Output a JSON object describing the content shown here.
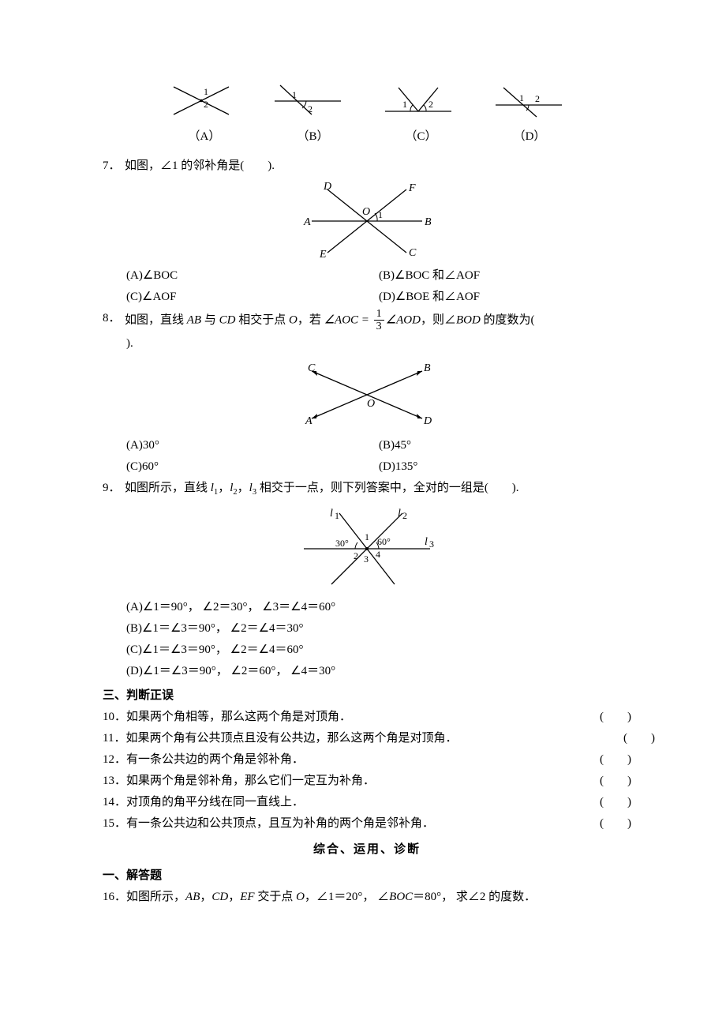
{
  "q6_figs": {
    "labels": [
      "（A）",
      "（B）",
      "（C）",
      "（D）"
    ]
  },
  "q7": {
    "num": "7．",
    "text": "如图，∠1 的邻补角是(　　).",
    "optA": "(A)∠BOC",
    "optB": "(B)∠BOC 和∠AOF",
    "optC": "(C)∠AOF",
    "optD": "(D)∠BOE 和∠AOF",
    "fig": {
      "labels": {
        "A": "A",
        "B": "B",
        "C": "C",
        "D": "D",
        "E": "E",
        "F": "F",
        "O": "O",
        "one": "1"
      }
    }
  },
  "q8": {
    "num": "8．",
    "text_pre": "如图，直线 ",
    "ab": "AB",
    "text_mid1": " 与 ",
    "cd": "CD",
    "text_mid2": " 相交于点 ",
    "o": "O",
    "text_mid3": "，若 ",
    "eq_lhs": "∠AOC = ",
    "frac_num": "1",
    "frac_den": "3",
    "eq_rhs": "∠AOD",
    "text_mid4": "，则∠",
    "bod": "BOD",
    "text_end": " 的度数为(",
    "text_close": ").",
    "optA": "(A)30°",
    "optB": "(B)45°",
    "optC": "(C)60°",
    "optD": "(D)135°",
    "fig": {
      "labels": {
        "A": "A",
        "B": "B",
        "C": "C",
        "D": "D",
        "O": "O"
      }
    }
  },
  "q9": {
    "num": "9．",
    "text_pre": "如图所示，直线 ",
    "l1": "l",
    "l1s": "1",
    "l2": "l",
    "l2s": "2",
    "l3": "l",
    "l3s": "3",
    "text_mid": " 相交于一点，则下列答案中，全对的一组是(　　).",
    "optA": "(A)∠1＝90°， ∠2＝30°， ∠3＝∠4＝60°",
    "optB": "(B)∠1＝∠3＝90°， ∠2＝∠4＝30°",
    "optC": "(C)∠1＝∠3＝90°， ∠2＝∠4＝60°",
    "optD": "(D)∠1＝∠3＝90°， ∠2＝60°， ∠4＝30°",
    "fig": {
      "labels": {
        "l1": "l",
        "l2": "l",
        "l3": "l",
        "s1": "1",
        "s2": "2",
        "s3": "3",
        "a30": "30°",
        "a60": "60°",
        "n1": "1",
        "n2": "2",
        "n3": "3",
        "n4": "4"
      }
    }
  },
  "sec3": "三、判断正误",
  "tf": [
    {
      "num": "10．",
      "text": "如果两个角相等，那么这两个角是对顶角．"
    },
    {
      "num": "11．",
      "text": "如果两个角有公共顶点且没有公共边，那么这两个角是对顶角．"
    },
    {
      "num": "12．",
      "text": "有一条公共边的两个角是邻补角．"
    },
    {
      "num": "13．",
      "text": "如果两个角是邻补角，那么它们一定互为补角．"
    },
    {
      "num": "14．",
      "text": "对顶角的角平分线在同一直线上．"
    },
    {
      "num": "15．",
      "text": "有一条公共边和公共顶点，且互为补角的两个角是邻补角．"
    }
  ],
  "paren": "(　　)",
  "title2": "综合、运用、诊断",
  "sec1b": "一、解答题",
  "q16": {
    "num": "16．",
    "text_pre": "如图所示，",
    "ab": "AB",
    "c1": "，",
    "cd": "CD",
    "c2": "，",
    "ef": "EF",
    "text_mid1": " 交于点 ",
    "o": "O",
    "text_mid2": "，∠1＝20°， ∠",
    "boc": "BOC",
    "text_end": "＝80°， 求∠2 的度数．"
  },
  "svgstyle": {
    "stroke": "#000",
    "stroke_width": 1.3
  }
}
